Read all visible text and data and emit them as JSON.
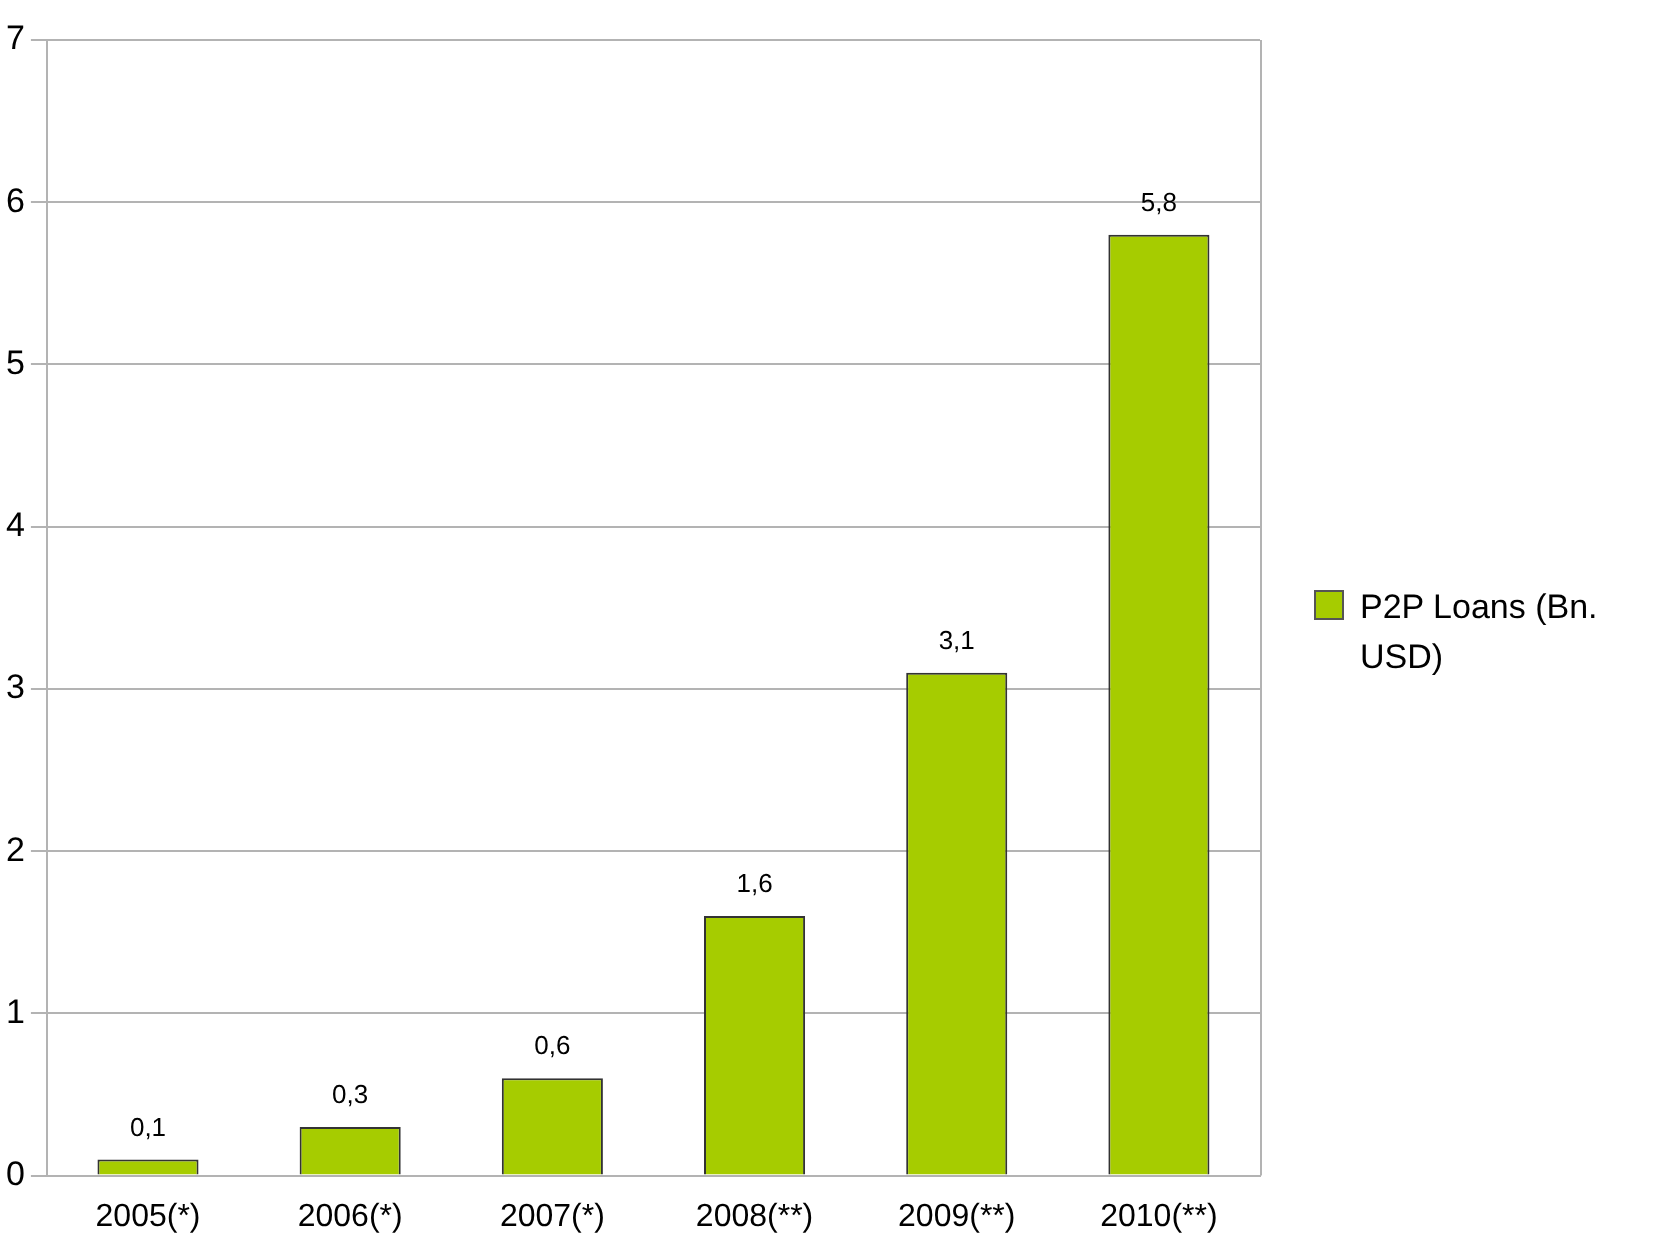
{
  "chart_data": {
    "type": "bar",
    "categories": [
      "2005(*)",
      "2006(*)",
      "2007(*)",
      "2008(**)",
      "2009(**)",
      "2010(**)"
    ],
    "series": [
      {
        "name": "P2P Loans (Bn. USD)",
        "color": "#a6cc00",
        "values": [
          0.1,
          0.3,
          0.6,
          1.6,
          3.1,
          5.8
        ],
        "value_labels": [
          "0,1",
          "0,3",
          "0,6",
          "1,6",
          "3,1",
          "5,8"
        ]
      }
    ],
    "ylim": [
      0,
      7
    ],
    "yticks": [
      0,
      1,
      2,
      3,
      4,
      5,
      6,
      7
    ],
    "grid": "y",
    "legend": "right"
  }
}
